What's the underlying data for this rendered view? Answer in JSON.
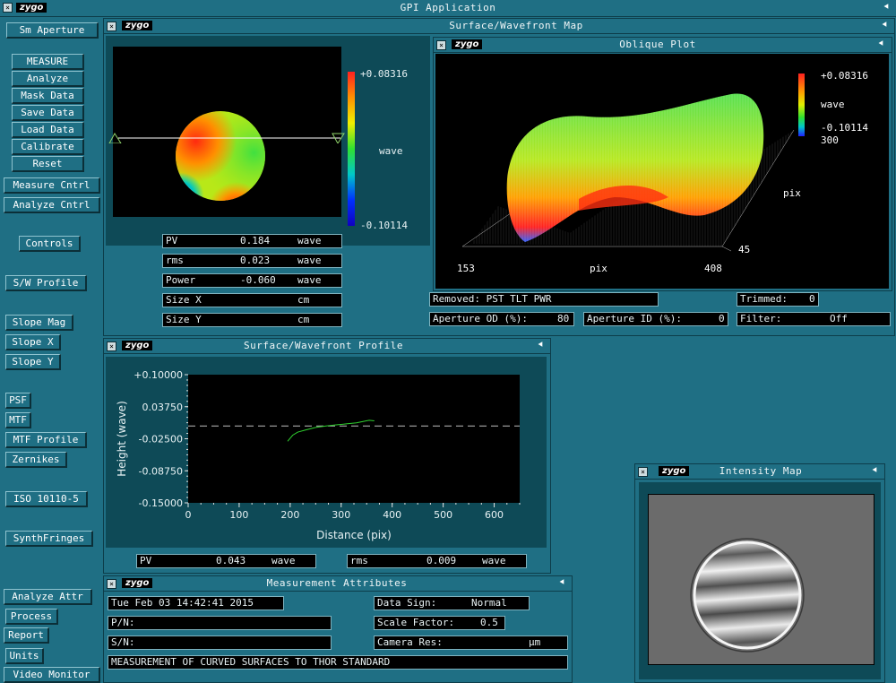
{
  "app": {
    "title": "GPI Application",
    "brand": "zygo"
  },
  "left_menu": [
    {
      "id": "sm-aperture",
      "label": "Sm Aperture"
    },
    {
      "id": "measure",
      "label": "MEASURE"
    },
    {
      "id": "analyze",
      "label": "Analyze"
    },
    {
      "id": "mask-data",
      "label": "Mask Data"
    },
    {
      "id": "save-data",
      "label": "Save Data"
    },
    {
      "id": "load-data",
      "label": "Load Data"
    },
    {
      "id": "calibrate",
      "label": "Calibrate"
    },
    {
      "id": "reset",
      "label": "Reset"
    },
    {
      "id": "measure-cntrl",
      "label": "Measure Cntrl"
    },
    {
      "id": "analyze-cntrl",
      "label": "Analyze Cntrl"
    },
    {
      "id": "controls",
      "label": "Controls"
    },
    {
      "id": "sw-profile",
      "label": "S/W Profile"
    },
    {
      "id": "slope-mag",
      "label": "Slope Mag"
    },
    {
      "id": "slope-x",
      "label": "Slope X"
    },
    {
      "id": "slope-y",
      "label": "Slope Y"
    },
    {
      "id": "psf",
      "label": "PSF"
    },
    {
      "id": "mtf",
      "label": "MTF"
    },
    {
      "id": "mtf-profile",
      "label": "MTF Profile"
    },
    {
      "id": "zernikes",
      "label": "Zernikes"
    },
    {
      "id": "iso",
      "label": "ISO 10110-5"
    },
    {
      "id": "synthfringes",
      "label": "SynthFringes"
    },
    {
      "id": "analyze-attr",
      "label": "Analyze Attr"
    },
    {
      "id": "process",
      "label": "Process"
    },
    {
      "id": "report",
      "label": "Report"
    },
    {
      "id": "units",
      "label": "Units"
    },
    {
      "id": "video-monitor",
      "label": "Video Monitor"
    }
  ],
  "surface_map": {
    "title": "Surface/Wavefront Map",
    "colorbar": {
      "max": "+0.08316",
      "min": "-0.10114",
      "unit": "wave"
    },
    "results": [
      {
        "label": "PV",
        "value": "0.184",
        "unit": "wave"
      },
      {
        "label": "rms",
        "value": "0.023",
        "unit": "wave"
      },
      {
        "label": "Power",
        "value": "-0.060",
        "unit": "wave"
      },
      {
        "label": "Size X",
        "value": "",
        "unit": "cm"
      },
      {
        "label": "Size Y",
        "value": "",
        "unit": "cm"
      }
    ]
  },
  "oblique_plot": {
    "title": "Oblique Plot",
    "colorbar": {
      "max": "+0.08316",
      "min": "-0.10114",
      "unit": "wave"
    },
    "x_axis": {
      "min": "153",
      "max": "408",
      "label": "pix"
    },
    "y_axis": {
      "min": "45",
      "max": "300",
      "label": "pix"
    },
    "removed": "Removed: PST TLT PWR",
    "trimmed": {
      "label": "Trimmed:",
      "value": "0"
    },
    "aperture_od": {
      "label": "Aperture OD (%):",
      "value": "80"
    },
    "aperture_id": {
      "label": "Aperture ID (%):",
      "value": "0"
    },
    "filter": {
      "label": "Filter:",
      "value": "Off"
    }
  },
  "profile": {
    "title": "Surface/Wavefront Profile",
    "pv": {
      "label": "PV",
      "value": "0.043",
      "unit": "wave"
    },
    "rms": {
      "label": "rms",
      "value": "0.009",
      "unit": "wave"
    }
  },
  "chart_data": {
    "type": "line",
    "xlabel": "Distance (pix)",
    "ylabel": "Height (wave)",
    "xlim": [
      0,
      650
    ],
    "ylim": [
      -0.15,
      0.1
    ],
    "x_ticks": [
      "0",
      "100",
      "200",
      "300",
      "400",
      "500",
      "600"
    ],
    "y_ticks": [
      "+0.10000",
      "0.03750",
      "-0.02500",
      "-0.08750",
      "-0.15000"
    ],
    "reference_line": 0.0,
    "series": [
      {
        "x": [
          195,
          205,
          215,
          230,
          250,
          270,
          290,
          310,
          330,
          345,
          355,
          365
        ],
        "y": [
          -0.03,
          -0.018,
          -0.012,
          -0.008,
          -0.003,
          0.0,
          0.002,
          0.004,
          0.006,
          0.009,
          0.011,
          0.01
        ]
      }
    ]
  },
  "attributes": {
    "title": "Measurement Attributes",
    "timestamp": "Tue Feb 03 14:42:41 2015",
    "pn_label": "P/N:",
    "sn_label": "S/N:",
    "description": "MEASUREMENT OF CURVED SURFACES TO THOR STANDARD",
    "data_sign": {
      "label": "Data Sign:",
      "value": "Normal"
    },
    "scale_factor": {
      "label": "Scale Factor:",
      "value": "0.5"
    },
    "camera_res": {
      "label": "Camera Res:",
      "unit": "µm"
    }
  },
  "intensity": {
    "title": "Intensity Map"
  },
  "icons": {
    "close": "close-box-icon",
    "pin": "pin-icon"
  }
}
